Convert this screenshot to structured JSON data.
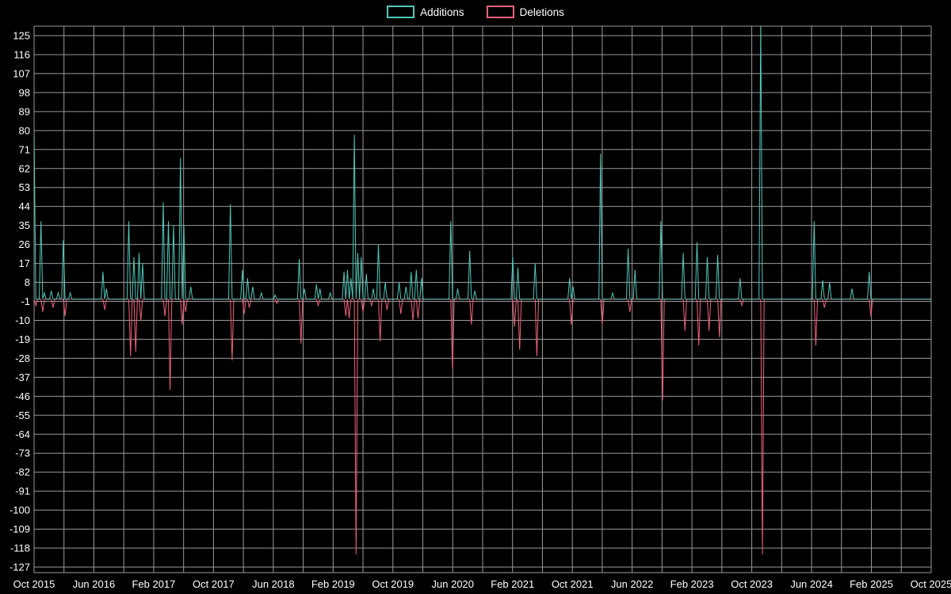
{
  "page": {
    "background": "#000000"
  },
  "legend": {
    "items": [
      {
        "label": "Additions",
        "color": "#4FC9BA"
      },
      {
        "label": "Deletions",
        "color": "#F2617A"
      }
    ]
  },
  "chart_data": {
    "type": "line",
    "title": "",
    "xlabel": "",
    "ylabel": "",
    "background_color": "#000000",
    "grid_color": "#9a9a9a",
    "grid": true,
    "legend_position": "top-center",
    "x_tick_labels": [
      "Oct 2015",
      "Jun 2016",
      "Feb 2017",
      "Oct 2017",
      "Jun 2018",
      "Feb 2019",
      "Oct 2019",
      "Jun 2020",
      "Feb 2021",
      "Oct 2021",
      "Jun 2022",
      "Feb 2023",
      "Oct 2023",
      "Jun 2024",
      "Feb 2025",
      "Oct 2025"
    ],
    "x_gridlines_per_label_interval": 2,
    "y_ticks": [
      125,
      116,
      107,
      98,
      89,
      80,
      71,
      62,
      53,
      44,
      35,
      26,
      17,
      8,
      -1,
      -10,
      -19,
      -28,
      -37,
      -46,
      -55,
      -64,
      -73,
      -82,
      -91,
      -100,
      -109,
      -118,
      -127
    ],
    "ylim": [
      -127,
      125
    ],
    "baseline": 0,
    "total_weeks": 521,
    "series": [
      {
        "name": "Additions",
        "color": "#4FC9BA",
        "spikes": [
          [
            0,
            80
          ],
          [
            4,
            37
          ],
          [
            6,
            3
          ],
          [
            10,
            4
          ],
          [
            14,
            3
          ],
          [
            17,
            28
          ],
          [
            21,
            3
          ],
          [
            40,
            13
          ],
          [
            42,
            5
          ],
          [
            55,
            37
          ],
          [
            58,
            20
          ],
          [
            61,
            22
          ],
          [
            63,
            17
          ],
          [
            75,
            46
          ],
          [
            78,
            37
          ],
          [
            81,
            35
          ],
          [
            85,
            67
          ],
          [
            87,
            35
          ],
          [
            91,
            6
          ],
          [
            114,
            45
          ],
          [
            121,
            14
          ],
          [
            124,
            10
          ],
          [
            127,
            6
          ],
          [
            132,
            3
          ],
          [
            140,
            2
          ],
          [
            154,
            19
          ],
          [
            157,
            5
          ],
          [
            164,
            7
          ],
          [
            166,
            5
          ],
          [
            172,
            3
          ],
          [
            180,
            13
          ],
          [
            182,
            14
          ],
          [
            184,
            10
          ],
          [
            186,
            78
          ],
          [
            188,
            22
          ],
          [
            190,
            20
          ],
          [
            193,
            12
          ],
          [
            197,
            5
          ],
          [
            200,
            26
          ],
          [
            204,
            8
          ],
          [
            212,
            8
          ],
          [
            216,
            6
          ],
          [
            219,
            13
          ],
          [
            222,
            14
          ],
          [
            225,
            10
          ],
          [
            242,
            37
          ],
          [
            246,
            5
          ],
          [
            253,
            23
          ],
          [
            256,
            4
          ],
          [
            278,
            20
          ],
          [
            281,
            15
          ],
          [
            291,
            17
          ],
          [
            311,
            10
          ],
          [
            313,
            6
          ],
          [
            329,
            69
          ],
          [
            336,
            3
          ],
          [
            345,
            24
          ],
          [
            349,
            14
          ],
          [
            364,
            37
          ],
          [
            377,
            22
          ],
          [
            385,
            27
          ],
          [
            391,
            20
          ],
          [
            397,
            21
          ],
          [
            410,
            10
          ],
          [
            422,
            132
          ],
          [
            453,
            37
          ],
          [
            458,
            9
          ],
          [
            462,
            8
          ],
          [
            475,
            5
          ],
          [
            485,
            13
          ]
        ]
      },
      {
        "name": "Deletions",
        "color": "#F2617A",
        "spikes": [
          [
            1,
            -3
          ],
          [
            5,
            -6
          ],
          [
            11,
            -4
          ],
          [
            18,
            -8
          ],
          [
            41,
            -5
          ],
          [
            56,
            -27
          ],
          [
            59,
            -25
          ],
          [
            62,
            -10
          ],
          [
            76,
            -8
          ],
          [
            79,
            -43
          ],
          [
            86,
            -12
          ],
          [
            88,
            -6
          ],
          [
            115,
            -29
          ],
          [
            122,
            -7
          ],
          [
            125,
            -4
          ],
          [
            141,
            -2
          ],
          [
            155,
            -21
          ],
          [
            165,
            -3
          ],
          [
            181,
            -8
          ],
          [
            183,
            -9
          ],
          [
            187,
            -121
          ],
          [
            191,
            -6
          ],
          [
            196,
            -3
          ],
          [
            201,
            -20
          ],
          [
            205,
            -5
          ],
          [
            213,
            -7
          ],
          [
            220,
            -10
          ],
          [
            223,
            -9
          ],
          [
            243,
            -33
          ],
          [
            254,
            -12
          ],
          [
            279,
            -13
          ],
          [
            282,
            -24
          ],
          [
            292,
            -27
          ],
          [
            312,
            -12
          ],
          [
            330,
            -12
          ],
          [
            346,
            -6
          ],
          [
            365,
            -48
          ],
          [
            378,
            -15
          ],
          [
            386,
            -22
          ],
          [
            392,
            -15
          ],
          [
            398,
            -18
          ],
          [
            411,
            -3
          ],
          [
            423,
            -121
          ],
          [
            454,
            -22
          ],
          [
            459,
            -4
          ],
          [
            486,
            -8
          ]
        ]
      }
    ]
  }
}
